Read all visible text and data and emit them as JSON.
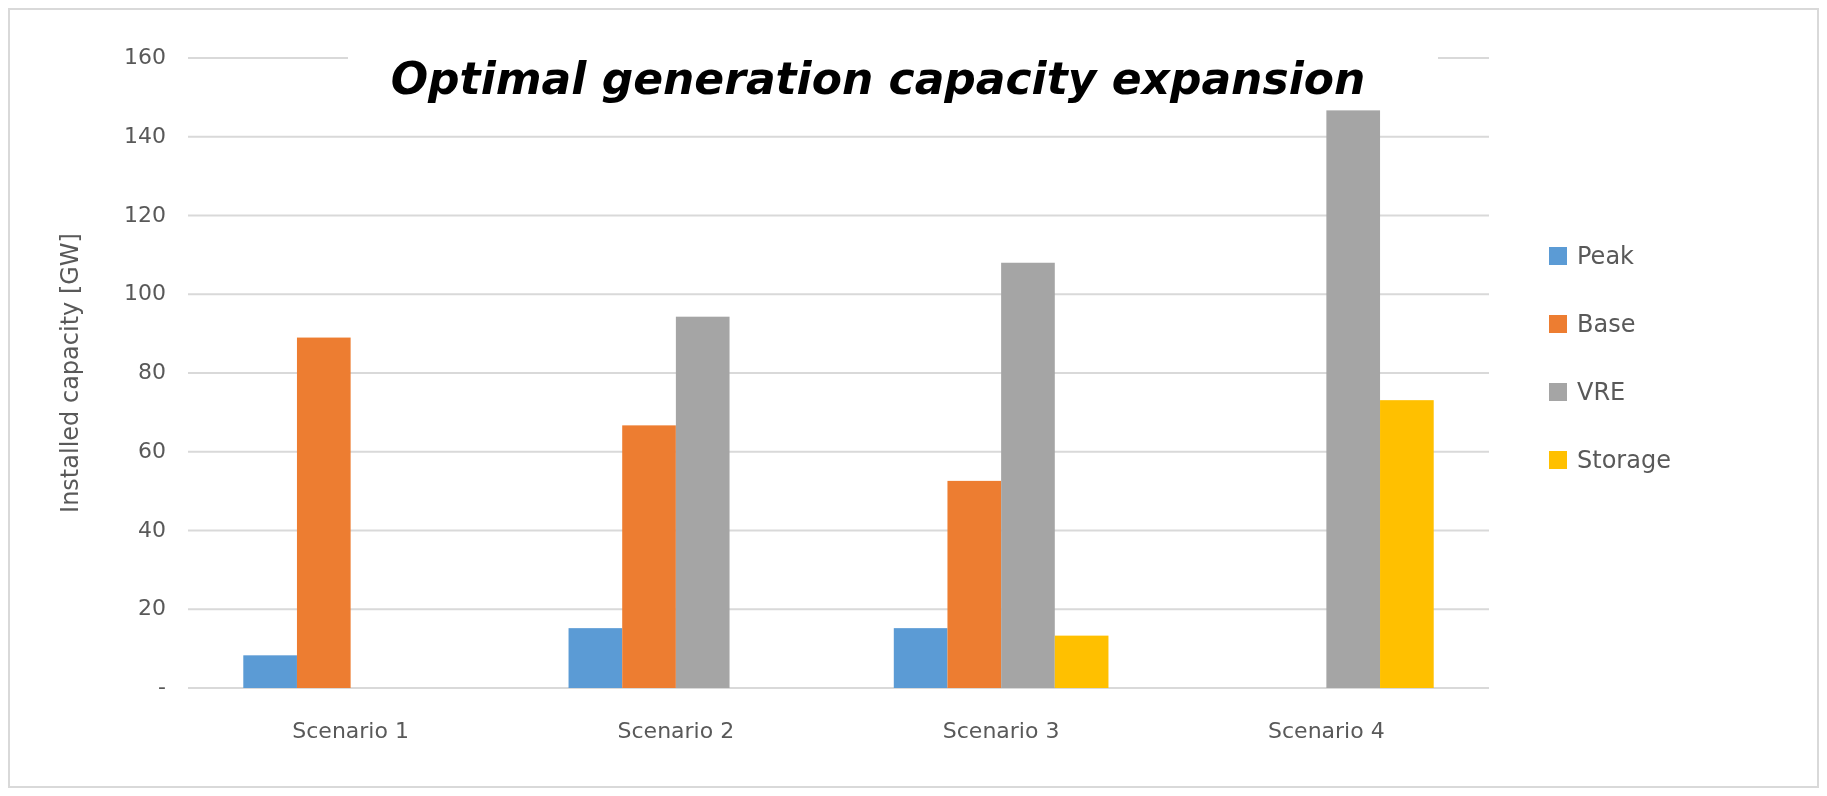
{
  "chart_data": {
    "type": "bar",
    "title": "Optimal generation capacity expansion",
    "ylabel": "Installed capacity [GW]",
    "categories": [
      "Scenario 1",
      "Scenario 2",
      "Scenario 3",
      "Scenario 4"
    ],
    "series": [
      {
        "name": "Peak",
        "color": "#5b9bd5",
        "values": [
          8.3,
          15.2,
          15.2,
          null
        ]
      },
      {
        "name": "Base",
        "color": "#ed7d31",
        "values": [
          89,
          66.7,
          52.6,
          null
        ]
      },
      {
        "name": "VRE",
        "color": "#a5a5a5",
        "values": [
          null,
          94.3,
          108,
          146.7
        ]
      },
      {
        "name": "Storage",
        "color": "#ffc000",
        "values": [
          null,
          null,
          13.3,
          73.1
        ]
      }
    ],
    "ylim": [
      0,
      160
    ],
    "yticks": [
      {
        "value": 0,
        "label": "-"
      },
      20,
      40,
      60,
      80,
      100,
      120,
      140,
      160
    ],
    "grid": "y",
    "legend": "right"
  }
}
